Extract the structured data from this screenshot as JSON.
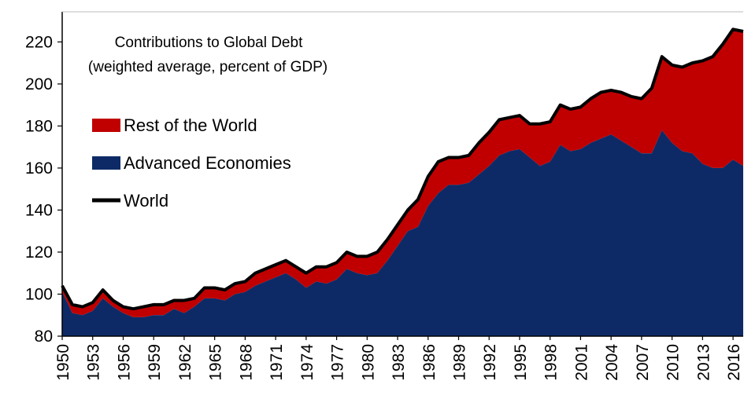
{
  "chart_data": {
    "type": "area",
    "title_lines": [
      "Contributions to Global Debt",
      "(weighted average, percent of GDP)"
    ],
    "xlabel": "",
    "ylabel": "",
    "ylim": [
      80,
      225
    ],
    "yticks": [
      80,
      100,
      120,
      140,
      160,
      180,
      200,
      220
    ],
    "xticks": [
      1950,
      1953,
      1956,
      1959,
      1962,
      1965,
      1968,
      1971,
      1974,
      1977,
      1980,
      1983,
      1986,
      1989,
      1992,
      1995,
      1998,
      2001,
      2004,
      2007,
      2010,
      2013,
      2016
    ],
    "x": [
      1950,
      1951,
      1952,
      1953,
      1954,
      1955,
      1956,
      1957,
      1958,
      1959,
      1960,
      1961,
      1962,
      1963,
      1964,
      1965,
      1966,
      1967,
      1968,
      1969,
      1970,
      1971,
      1972,
      1973,
      1974,
      1975,
      1976,
      1977,
      1978,
      1979,
      1980,
      1981,
      1982,
      1983,
      1984,
      1985,
      1986,
      1987,
      1988,
      1989,
      1990,
      1991,
      1992,
      1993,
      1994,
      1995,
      1996,
      1997,
      1998,
      1999,
      2000,
      2001,
      2002,
      2003,
      2004,
      2005,
      2006,
      2007,
      2008,
      2009,
      2010,
      2011,
      2012,
      2013,
      2014,
      2015,
      2016,
      2017
    ],
    "series": [
      {
        "name": "Advanced Economies",
        "color": "#0d2a66",
        "values": [
          101,
          91,
          90,
          92,
          98,
          94,
          91,
          89,
          89,
          90,
          90,
          93,
          91,
          94,
          98,
          98,
          97,
          100,
          101,
          104,
          106,
          108,
          110,
          107,
          103,
          106,
          105,
          107,
          112,
          110,
          109,
          110,
          116,
          123,
          130,
          132,
          142,
          148,
          152,
          152,
          153,
          157,
          161,
          166,
          168,
          169,
          165,
          161,
          163,
          171,
          168,
          169,
          172,
          174,
          176,
          173,
          170,
          167,
          167,
          178,
          172,
          168,
          167,
          162,
          160,
          160,
          164,
          161
        ]
      },
      {
        "name": "Rest of the World",
        "color": "#c00000",
        "values": [
          3,
          4,
          4,
          4,
          4,
          3,
          3,
          4,
          5,
          5,
          5,
          4,
          6,
          4,
          5,
          5,
          5,
          5,
          5,
          6,
          6,
          6,
          6,
          6,
          7,
          7,
          8,
          8,
          8,
          8,
          9,
          10,
          10,
          10,
          10,
          13,
          14,
          15,
          13,
          13,
          13,
          15,
          16,
          17,
          16,
          16,
          16,
          20,
          19,
          19,
          20,
          20,
          21,
          22,
          21,
          23,
          24,
          26,
          31,
          35,
          37,
          40,
          43,
          49,
          53,
          59,
          62,
          64
        ]
      },
      {
        "name": "World",
        "color": "#000000",
        "values": [
          104,
          95,
          94,
          96,
          102,
          97,
          94,
          93,
          94,
          95,
          95,
          97,
          97,
          98,
          103,
          103,
          102,
          105,
          106,
          110,
          112,
          114,
          116,
          113,
          110,
          113,
          113,
          115,
          120,
          118,
          118,
          120,
          126,
          133,
          140,
          145,
          156,
          163,
          165,
          165,
          166,
          172,
          177,
          183,
          184,
          185,
          181,
          181,
          182,
          190,
          188,
          189,
          193,
          196,
          197,
          196,
          194,
          193,
          198,
          213,
          209,
          208,
          210,
          211,
          213,
          219,
          226,
          225
        ]
      }
    ],
    "legend": {
      "placement": "top-left",
      "entries": [
        "Rest of the World",
        "Advanced Economies",
        "World"
      ]
    },
    "grid": false
  }
}
